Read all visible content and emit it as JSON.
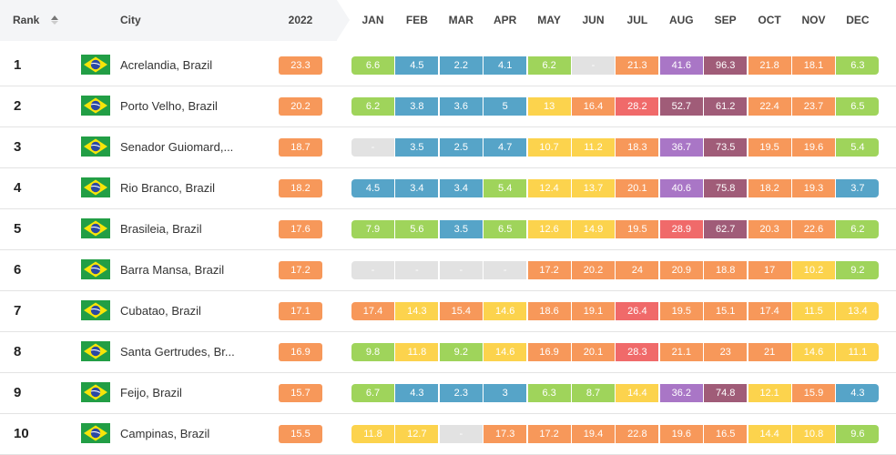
{
  "header": {
    "rank_label": "Rank",
    "city_label": "City",
    "year_label": "2022",
    "months": [
      "JAN",
      "FEB",
      "MAR",
      "APR",
      "MAY",
      "JUN",
      "JUL",
      "AUG",
      "SEP",
      "OCT",
      "NOV",
      "DEC"
    ]
  },
  "colors": {
    "blue": "#56a4c8",
    "green": "#9fd45b",
    "yellow": "#fcd34d",
    "orange": "#f7985a",
    "red": "#f06a6a",
    "purple": "#a976c6",
    "maroon": "#a05c78",
    "gray": "#e2e2e2"
  },
  "rows": [
    {
      "rank": "1",
      "city": "Acrelandia, Brazil",
      "annual": "23.3",
      "months": [
        "6.6",
        "4.5",
        "2.2",
        "4.1",
        "6.2",
        "-",
        "21.3",
        "41.6",
        "96.3",
        "21.8",
        "18.1",
        "6.3"
      ]
    },
    {
      "rank": "2",
      "city": "Porto Velho, Brazil",
      "annual": "20.2",
      "months": [
        "6.2",
        "3.8",
        "3.6",
        "5",
        "13",
        "16.4",
        "28.2",
        "52.7",
        "61.2",
        "22.4",
        "23.7",
        "6.5"
      ]
    },
    {
      "rank": "3",
      "city": "Senador Guiomard,...",
      "annual": "18.7",
      "months": [
        "-",
        "3.5",
        "2.5",
        "4.7",
        "10.7",
        "11.2",
        "18.3",
        "36.7",
        "73.5",
        "19.5",
        "19.6",
        "5.4"
      ]
    },
    {
      "rank": "4",
      "city": "Rio Branco, Brazil",
      "annual": "18.2",
      "months": [
        "4.5",
        "3.4",
        "3.4",
        "5.4",
        "12.4",
        "13.7",
        "20.1",
        "40.6",
        "75.8",
        "18.2",
        "19.3",
        "3.7"
      ]
    },
    {
      "rank": "5",
      "city": "Brasileia, Brazil",
      "annual": "17.6",
      "months": [
        "7.9",
        "5.6",
        "3.5",
        "6.5",
        "12.6",
        "14.9",
        "19.5",
        "28.9",
        "62.7",
        "20.3",
        "22.6",
        "6.2"
      ]
    },
    {
      "rank": "6",
      "city": "Barra Mansa, Brazil",
      "annual": "17.2",
      "months": [
        "-",
        "-",
        "-",
        "-",
        "17.2",
        "20.2",
        "24",
        "20.9",
        "18.8",
        "17",
        "10.2",
        "9.2"
      ]
    },
    {
      "rank": "7",
      "city": "Cubatao, Brazil",
      "annual": "17.1",
      "months": [
        "17.4",
        "14.3",
        "15.4",
        "14.6",
        "18.6",
        "19.1",
        "26.4",
        "19.5",
        "15.1",
        "17.4",
        "11.5",
        "13.4"
      ]
    },
    {
      "rank": "8",
      "city": "Santa Gertrudes, Br...",
      "annual": "16.9",
      "months": [
        "9.8",
        "11.8",
        "9.2",
        "14.6",
        "16.9",
        "20.1",
        "28.3",
        "21.1",
        "23",
        "21",
        "14.6",
        "11.1"
      ]
    },
    {
      "rank": "9",
      "city": "Feijo, Brazil",
      "annual": "15.7",
      "months": [
        "6.7",
        "4.3",
        "2.3",
        "3",
        "6.3",
        "8.7",
        "14.4",
        "36.2",
        "74.8",
        "12.1",
        "15.9",
        "4.3"
      ]
    },
    {
      "rank": "10",
      "city": "Campinas, Brazil",
      "annual": "15.5",
      "months": [
        "11.8",
        "12.7",
        "-",
        "17.3",
        "17.2",
        "19.4",
        "22.8",
        "19.6",
        "16.5",
        "14.4",
        "10.8",
        "9.6"
      ]
    }
  ]
}
